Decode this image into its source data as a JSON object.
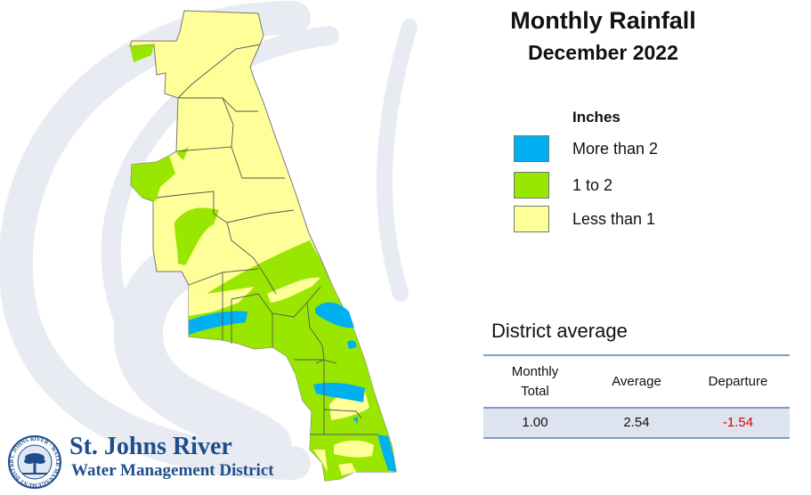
{
  "title": "Monthly Rainfall",
  "subtitle": "December 2022",
  "legend": {
    "title": "Inches",
    "items": [
      {
        "label": "More than 2",
        "color": "#00b0f0"
      },
      {
        "label": "1 to 2",
        "color": "#99e600"
      },
      {
        "label": "Less than 1",
        "color": "#ffff99"
      }
    ]
  },
  "district": {
    "heading": "District average",
    "columns": [
      "Monthly\nTotal",
      "Average",
      "Departure"
    ],
    "values": {
      "monthly_total": "1.00",
      "average": "2.54",
      "departure": "-1.54"
    },
    "departure_color": "#e00000"
  },
  "logo": {
    "name": "St. Johns River",
    "subname": "Water Management District",
    "seal_text": "ST. JOHNS RIVER · WATER MANAGEMENT DISTRICT ·"
  },
  "colors": {
    "background_swoosh": "#e8ebf2",
    "county_border": "#555555"
  }
}
